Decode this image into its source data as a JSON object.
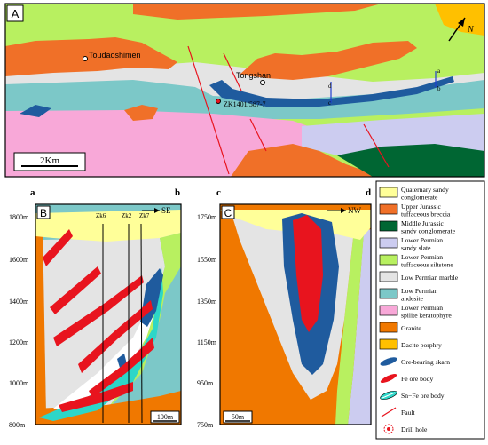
{
  "panels": {
    "a": {
      "label": "A",
      "places": [
        "Toudaoshimen",
        "Tongshan"
      ],
      "drillhole": "ZK1401/587-7",
      "scale": "2Km",
      "north": "N",
      "section_marks": [
        "a",
        "b",
        "c",
        "d"
      ]
    },
    "b": {
      "label": "B",
      "corner_left": "a",
      "corner_right": "b",
      "direction": "SE",
      "drills": [
        "Zk6",
        "Zk2",
        "Zk7"
      ],
      "elevations": [
        "1800m",
        "1600m",
        "1400m",
        "1200m",
        "1000m",
        "800m"
      ],
      "scale": "100m"
    },
    "c": {
      "label": "C",
      "corner_left": "c",
      "corner_right": "d",
      "direction": "NW",
      "elevations": [
        "1750m",
        "1550m",
        "1350m",
        "1150m",
        "950m",
        "750m"
      ],
      "scale": "50m"
    }
  },
  "legend": [
    {
      "text": "Quaternary sandy conglomerate",
      "color": "#FFFF99"
    },
    {
      "text": "Upper Jurassic tuffaceous breccia",
      "color": "#F07028"
    },
    {
      "text": "Middle Jurassic sandy conglomerate",
      "color": "#006633"
    },
    {
      "text": "Lower Permian  sandy slate",
      "color": "#CCCCF0"
    },
    {
      "text": "Lower Permian tuffaceous siltstone",
      "color": "#B8F060"
    },
    {
      "text": "Low Permian marble",
      "color": "#E4E4E4"
    },
    {
      "text": "Low Permian andesite",
      "color": "#7CC8C8"
    },
    {
      "text": "Lower Permian spilite keratophyre",
      "color": "#F8A8D8"
    },
    {
      "text": "Granite",
      "color": "#F07800"
    },
    {
      "text": "Dacite porphry",
      "color": "#FFC000"
    },
    {
      "text": "Ore-bearing skarn",
      "icon": "ore-bearing-skarn-icon"
    },
    {
      "text": "Fe ore body",
      "icon": "fe-ore-body-icon"
    },
    {
      "text": "Sn−Fe ore body",
      "icon": "sn-fe-ore-body-icon"
    },
    {
      "text": "Fault",
      "icon": "fault-icon"
    },
    {
      "text": "Drill hole",
      "icon": "drill-hole-icon"
    }
  ],
  "colors": {
    "fe": "#E8141E",
    "skarn": "#1F5B9E",
    "snfe": "#2DD6C8",
    "fault": "#E8141E"
  }
}
